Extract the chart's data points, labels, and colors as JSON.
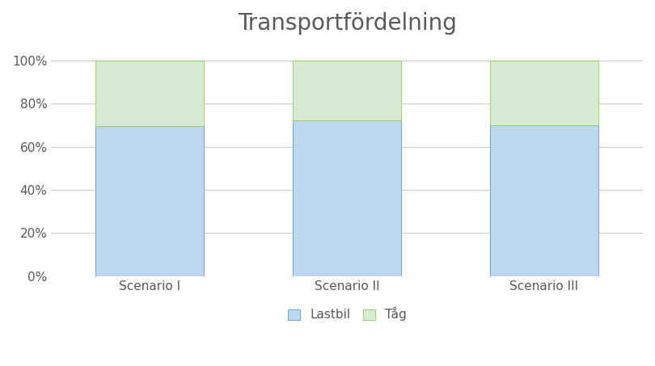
{
  "title": "Transportfördelning",
  "categories": [
    "Scenario I",
    "Scenario II",
    "Scenario III"
  ],
  "lastbil_values": [
    0.697,
    0.722,
    0.7
  ],
  "tag_values": [
    0.303,
    0.278,
    0.3
  ],
  "lastbil_color": "#bdd7ee",
  "tag_color": "#d9ead3",
  "lastbil_edge_color": "#5b9bd5",
  "tag_edge_color": "#92d050",
  "background_color": "#ffffff",
  "plot_area_color": "#ffffff",
  "title_fontsize": 20,
  "tick_fontsize": 11,
  "legend_fontsize": 11,
  "yticks": [
    0.0,
    0.2,
    0.4,
    0.6,
    0.8,
    1.0
  ],
  "ytick_labels": [
    "0%",
    "20%",
    "40%",
    "60%",
    "80%",
    "100%"
  ],
  "legend_labels": [
    "Lastbil",
    "Tåg"
  ],
  "bar_width": 0.55,
  "grid_color": "#d0d0d0",
  "title_color": "#595959",
  "tick_color": "#595959"
}
